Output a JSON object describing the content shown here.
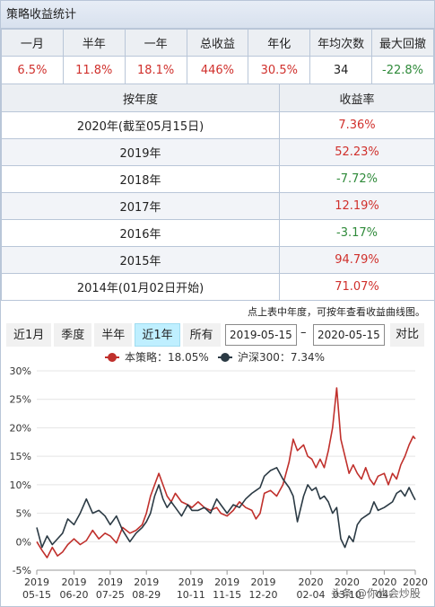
{
  "title": "策略收益统计",
  "summary": {
    "headers": [
      "一月",
      "半年",
      "一年",
      "总收益",
      "年化",
      "年均次数",
      "最大回撤"
    ],
    "values": [
      "6.5%",
      "11.8%",
      "18.1%",
      "446%",
      "30.5%",
      "34",
      "-22.8%"
    ],
    "colors": [
      "#d0302c",
      "#d0302c",
      "#d0302c",
      "#d0302c",
      "#d0302c",
      "#222222",
      "#2f8a3a"
    ]
  },
  "yearly": {
    "header_year": "按年度",
    "header_return": "收益率",
    "rows": [
      {
        "year": "2020年(截至05月15日)",
        "ret": "7.36%"
      },
      {
        "year": "2019年",
        "ret": "52.23%"
      },
      {
        "year": "2018年",
        "ret": "-7.72%"
      },
      {
        "year": "2017年",
        "ret": "12.19%"
      },
      {
        "year": "2016年",
        "ret": "-3.17%"
      },
      {
        "year": "2015年",
        "ret": "94.79%"
      },
      {
        "year": "2014年(01月02日开始)",
        "ret": "71.07%"
      }
    ]
  },
  "hint": "点上表中年度，可按年查看收益曲线图。",
  "ranges": [
    {
      "label": "近1月",
      "active": false
    },
    {
      "label": "季度",
      "active": false
    },
    {
      "label": "半年",
      "active": false
    },
    {
      "label": "近1年",
      "active": true
    },
    {
      "label": "所有",
      "active": false
    }
  ],
  "date_from": "2019-05-15",
  "date_sep": "–",
  "date_to": "2020-05-15",
  "compare_label": "对比",
  "watermark": "头条 @你也会炒股",
  "colors": {
    "strategy": "#c0302c",
    "index": "#2b3a44",
    "positive": "#d0302c",
    "negative": "#2f8a3a",
    "active_range": "#bfefff"
  },
  "chart_data": {
    "type": "line",
    "ylim": [
      -5,
      30
    ],
    "yticks": [
      "30%",
      "25%",
      "20%",
      "15%",
      "10%",
      "5%",
      "0%",
      "-5%"
    ],
    "ytick_values": [
      30,
      25,
      20,
      15,
      10,
      5,
      0,
      -5
    ],
    "xticks": [
      {
        "year": "2019",
        "date": "05-15",
        "t": 0
      },
      {
        "year": "2019",
        "date": "06-20",
        "t": 36
      },
      {
        "year": "2019",
        "date": "07-25",
        "t": 71
      },
      {
        "year": "2019",
        "date": "08-29",
        "t": 106
      },
      {
        "year": "2019",
        "date": "10-11",
        "t": 149
      },
      {
        "year": "2019",
        "date": "11-15",
        "t": 184
      },
      {
        "year": "2019",
        "date": "12-20",
        "t": 219
      },
      {
        "year": "2020",
        "date": "02-04",
        "t": 265
      },
      {
        "year": "2020",
        "date": "03-10",
        "t": 300
      },
      {
        "year": "2020",
        "date": "04-",
        "t": 336
      },
      {
        "year": "2020",
        "date": "",
        "t": 366
      }
    ],
    "grid": "horizontal",
    "legend_placement": "top",
    "series": [
      {
        "name": "本策略：18.05%",
        "color": "#c0302c",
        "x": [
          0,
          5,
          10,
          15,
          20,
          25,
          30,
          36,
          42,
          48,
          54,
          60,
          66,
          71,
          77,
          83,
          90,
          96,
          102,
          106,
          110,
          114,
          118,
          122,
          126,
          130,
          134,
          140,
          146,
          150,
          156,
          162,
          168,
          174,
          178,
          184,
          190,
          196,
          202,
          208,
          212,
          216,
          220,
          226,
          232,
          238,
          244,
          248,
          252,
          258,
          262,
          266,
          270,
          274,
          278,
          282,
          286,
          290,
          294,
          298,
          302,
          306,
          310,
          314,
          318,
          322,
          326,
          330,
          336,
          340,
          344,
          348,
          352,
          356,
          360,
          364,
          366
        ],
        "y": [
          0.0,
          -1.5,
          -2.8,
          -1.0,
          -2.5,
          -1.8,
          -0.5,
          0.5,
          -0.5,
          0.2,
          2.0,
          0.5,
          1.5,
          1.0,
          -0.2,
          2.5,
          1.5,
          2.0,
          3.0,
          5.0,
          8.0,
          10.0,
          12.0,
          10.0,
          8.0,
          7.0,
          8.5,
          7.0,
          6.5,
          6.0,
          7.0,
          6.0,
          5.5,
          6.0,
          5.0,
          4.5,
          5.5,
          7.0,
          6.0,
          5.5,
          4.0,
          5.0,
          8.5,
          9.0,
          8.0,
          10.0,
          14.0,
          18.0,
          16.0,
          17.0,
          15.0,
          14.5,
          13.0,
          14.5,
          13.0,
          16.0,
          20.0,
          27.0,
          18.0,
          15.0,
          12.0,
          13.5,
          12.0,
          11.0,
          13.0,
          11.0,
          10.0,
          11.5,
          12.0,
          10.0,
          12.0,
          11.0,
          13.5,
          15.0,
          17.0,
          18.5,
          18.05
        ]
      },
      {
        "name": "沪深300：7.34%",
        "color": "#2b3a44",
        "x": [
          0,
          5,
          10,
          15,
          20,
          25,
          30,
          36,
          42,
          48,
          54,
          60,
          66,
          71,
          77,
          83,
          90,
          96,
          102,
          106,
          110,
          114,
          118,
          122,
          126,
          130,
          134,
          140,
          146,
          150,
          156,
          162,
          168,
          174,
          178,
          184,
          190,
          196,
          202,
          208,
          212,
          216,
          220,
          226,
          232,
          238,
          244,
          248,
          252,
          258,
          262,
          266,
          270,
          274,
          278,
          282,
          286,
          290,
          294,
          298,
          302,
          306,
          310,
          314,
          318,
          322,
          326,
          330,
          336,
          340,
          344,
          348,
          352,
          356,
          360,
          364,
          366
        ],
        "y": [
          2.5,
          -1.0,
          1.0,
          -0.5,
          0.5,
          1.5,
          4.0,
          3.0,
          5.0,
          7.5,
          5.0,
          5.5,
          4.5,
          3.0,
          4.5,
          2.0,
          0.0,
          1.5,
          2.5,
          3.5,
          5.0,
          8.0,
          10.0,
          7.5,
          6.0,
          7.0,
          6.0,
          4.5,
          6.5,
          5.5,
          5.5,
          6.0,
          5.0,
          7.5,
          6.5,
          5.0,
          6.5,
          6.0,
          7.5,
          8.5,
          9.0,
          9.5,
          11.5,
          12.5,
          13.0,
          11.0,
          9.5,
          8.0,
          3.5,
          8.0,
          10.0,
          9.0,
          9.5,
          7.5,
          8.0,
          7.0,
          5.0,
          6.0,
          0.5,
          -1.0,
          1.0,
          0.0,
          3.0,
          4.0,
          4.5,
          5.0,
          7.0,
          5.5,
          6.0,
          6.5,
          7.0,
          8.5,
          9.0,
          8.0,
          9.5,
          8.0,
          7.34
        ]
      }
    ]
  }
}
